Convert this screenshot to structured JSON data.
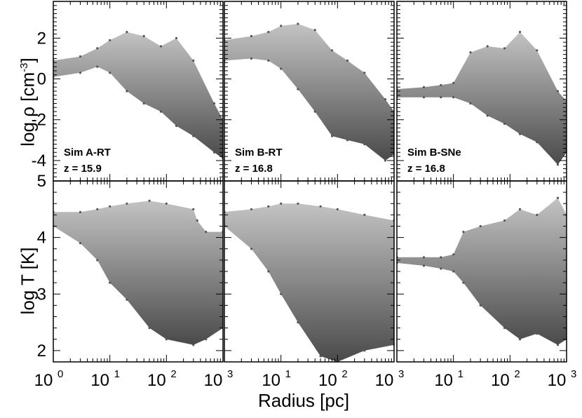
{
  "figure": {
    "xlabel": "Radius [pc]",
    "ylabel_top": "log ρ [cm",
    "ylabel_top_exp": "-3",
    "ylabel_top_close": "]",
    "ylabel_bottom": "log T [K]",
    "x_tick_base": "10",
    "x_tick_exponents": [
      "0",
      "1",
      "2",
      "3"
    ]
  },
  "chart_data": [
    {
      "type": "scatter",
      "panel": "Sim A-RT density",
      "label_line1": "Sim A-RT",
      "label_line2": "z = 15.9",
      "xscale": "log",
      "xlim": [
        1,
        1000
      ],
      "ylim": [
        -5,
        3.8
      ],
      "yticks": [
        "2",
        "0",
        "-2",
        "-4"
      ],
      "series": [
        {
          "upper": [
            [
              1,
              0.9
            ],
            [
              3,
              1.1
            ],
            [
              6,
              1.5
            ],
            [
              10,
              1.9
            ],
            [
              20,
              2.3
            ],
            [
              40,
              2.1
            ],
            [
              80,
              1.6
            ],
            [
              150,
              2.0
            ],
            [
              300,
              0.9
            ],
            [
              700,
              -1.2
            ],
            [
              1000,
              -2.0
            ]
          ],
          "lower": [
            [
              1,
              0.1
            ],
            [
              3,
              0.3
            ],
            [
              6,
              0.6
            ],
            [
              10,
              0.3
            ],
            [
              20,
              -0.6
            ],
            [
              40,
              -1.2
            ],
            [
              80,
              -1.6
            ],
            [
              150,
              -2.3
            ],
            [
              300,
              -2.8
            ],
            [
              700,
              -3.6
            ],
            [
              1000,
              -3.9
            ]
          ]
        }
      ]
    },
    {
      "type": "scatter",
      "panel": "Sim B-RT density",
      "label_line1": "Sim B-RT",
      "label_line2": "z = 16.8",
      "xscale": "log",
      "xlim": [
        1,
        1000
      ],
      "ylim": [
        -5,
        3.8
      ],
      "yticks": [],
      "series": [
        {
          "upper": [
            [
              1,
              1.9
            ],
            [
              3,
              2.1
            ],
            [
              6,
              2.3
            ],
            [
              10,
              2.6
            ],
            [
              20,
              2.7
            ],
            [
              40,
              2.4
            ],
            [
              80,
              1.4
            ],
            [
              150,
              0.9
            ],
            [
              300,
              0.3
            ],
            [
              700,
              -1.0
            ],
            [
              1000,
              -1.6
            ]
          ],
          "lower": [
            [
              1,
              0.9
            ],
            [
              3,
              1.0
            ],
            [
              6,
              0.9
            ],
            [
              10,
              0.5
            ],
            [
              20,
              -0.5
            ],
            [
              40,
              -1.6
            ],
            [
              80,
              -2.8
            ],
            [
              150,
              -3.0
            ],
            [
              300,
              -3.2
            ],
            [
              700,
              -4.0
            ],
            [
              1000,
              -3.7
            ]
          ]
        }
      ]
    },
    {
      "type": "scatter",
      "panel": "Sim B-SNe density",
      "label_line1": "Sim B-SNe",
      "label_line2": "z = 16.8",
      "xscale": "log",
      "xlim": [
        1,
        1000
      ],
      "ylim": [
        -5,
        3.8
      ],
      "yticks": [],
      "series": [
        {
          "upper": [
            [
              1,
              -0.5
            ],
            [
              3,
              -0.4
            ],
            [
              6,
              -0.3
            ],
            [
              10,
              -0.2
            ],
            [
              20,
              1.3
            ],
            [
              40,
              1.6
            ],
            [
              80,
              1.5
            ],
            [
              150,
              2.3
            ],
            [
              300,
              1.4
            ],
            [
              700,
              -0.6
            ],
            [
              1000,
              -1.1
            ]
          ],
          "lower": [
            [
              1,
              -0.9
            ],
            [
              3,
              -0.9
            ],
            [
              6,
              -0.9
            ],
            [
              10,
              -0.9
            ],
            [
              20,
              -1.2
            ],
            [
              40,
              -1.8
            ],
            [
              80,
              -2.2
            ],
            [
              150,
              -2.7
            ],
            [
              300,
              -3.1
            ],
            [
              700,
              -4.2
            ],
            [
              1000,
              -3.6
            ]
          ]
        }
      ]
    },
    {
      "type": "scatter",
      "panel": "Sim A-RT temperature",
      "xscale": "log",
      "xlim": [
        1,
        1000
      ],
      "ylim": [
        1.8,
        5
      ],
      "yticks": [
        "5",
        "4",
        "3",
        "2"
      ],
      "series": [
        {
          "upper": [
            [
              1,
              4.45
            ],
            [
              3,
              4.45
            ],
            [
              6,
              4.5
            ],
            [
              10,
              4.55
            ],
            [
              20,
              4.6
            ],
            [
              50,
              4.65
            ],
            [
              100,
              4.6
            ],
            [
              300,
              4.5
            ],
            [
              350,
              4.3
            ],
            [
              500,
              4.1
            ],
            [
              1000,
              4.1
            ]
          ],
          "lower": [
            [
              1,
              4.2
            ],
            [
              3,
              3.9
            ],
            [
              6,
              3.6
            ],
            [
              10,
              3.2
            ],
            [
              20,
              2.9
            ],
            [
              50,
              2.4
            ],
            [
              100,
              2.2
            ],
            [
              300,
              2.1
            ],
            [
              500,
              2.2
            ],
            [
              1000,
              2.4
            ]
          ]
        }
      ]
    },
    {
      "type": "scatter",
      "panel": "Sim B-RT temperature",
      "xscale": "log",
      "xlim": [
        1,
        1000
      ],
      "ylim": [
        1.8,
        5
      ],
      "yticks": [],
      "series": [
        {
          "upper": [
            [
              1,
              4.45
            ],
            [
              3,
              4.5
            ],
            [
              6,
              4.55
            ],
            [
              10,
              4.6
            ],
            [
              20,
              4.6
            ],
            [
              50,
              4.55
            ],
            [
              100,
              4.5
            ],
            [
              300,
              4.4
            ],
            [
              1000,
              4.3
            ]
          ],
          "lower": [
            [
              1,
              4.2
            ],
            [
              3,
              3.8
            ],
            [
              6,
              3.4
            ],
            [
              10,
              3.0
            ],
            [
              20,
              2.5
            ],
            [
              50,
              1.9
            ],
            [
              100,
              1.8
            ],
            [
              300,
              2.0
            ],
            [
              1000,
              2.1
            ]
          ]
        }
      ]
    },
    {
      "type": "scatter",
      "panel": "Sim B-SNe temperature",
      "xscale": "log",
      "xlim": [
        1,
        1000
      ],
      "ylim": [
        1.8,
        5
      ],
      "yticks": [],
      "series": [
        {
          "upper": [
            [
              1,
              3.65
            ],
            [
              3,
              3.65
            ],
            [
              6,
              3.65
            ],
            [
              10,
              3.7
            ],
            [
              15,
              4.1
            ],
            [
              30,
              4.2
            ],
            [
              80,
              4.3
            ],
            [
              150,
              4.5
            ],
            [
              300,
              4.4
            ],
            [
              700,
              4.7
            ],
            [
              1000,
              4.4
            ]
          ],
          "lower": [
            [
              1,
              3.55
            ],
            [
              3,
              3.5
            ],
            [
              6,
              3.45
            ],
            [
              10,
              3.4
            ],
            [
              15,
              3.2
            ],
            [
              30,
              2.8
            ],
            [
              80,
              2.4
            ],
            [
              150,
              2.2
            ],
            [
              300,
              2.3
            ],
            [
              700,
              2.1
            ],
            [
              1000,
              2.2
            ]
          ]
        }
      ]
    }
  ]
}
